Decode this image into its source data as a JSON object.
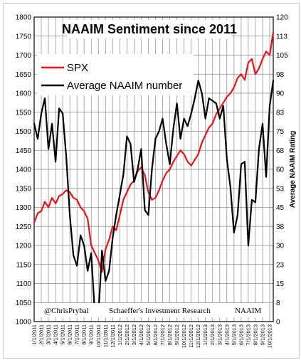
{
  "chart_data": {
    "type": "line",
    "title": "NAAIM Sentiment since 2011",
    "ylabel_right": "Average NAAIM Rating",
    "ylim_left": [
      1000,
      1800
    ],
    "ylim_right": [
      0,
      120
    ],
    "y_left_ticks": [
      "1000",
      "1050",
      "1100",
      "1150",
      "1200",
      "1250",
      "1300",
      "1350",
      "1400",
      "1450",
      "1500",
      "1550",
      "1600",
      "1650",
      "1700",
      "1750",
      "1800"
    ],
    "y_right_ticks": [
      "0",
      "8",
      "15",
      "23",
      "30",
      "38",
      "45",
      "53",
      "60",
      "68",
      "75",
      "83",
      "90",
      "98",
      "105",
      "113",
      "120"
    ],
    "x_tick_labels": [
      "1/1/2011",
      "2/1/2011",
      "3/1/2011",
      "4/1/2011",
      "5/1/2011",
      "6/1/2011",
      "7/1/2011",
      "8/1/2011",
      "9/1/2011",
      "10/1/2011",
      "11/1/2011",
      "12/1/2011",
      "1/1/2012",
      "2/1/2012",
      "3/1/2012",
      "4/1/2012",
      "5/1/2012",
      "6/1/2012",
      "7/1/2012",
      "8/1/2012",
      "9/1/2012",
      "10/1/2012",
      "11/1/2012",
      "12/1/2012",
      "1/1/2013",
      "2/1/2013",
      "3/1/2013",
      "4/1/2013",
      "5/1/2013",
      "6/1/2013",
      "7/1/2013",
      "8/1/2013",
      "9/1/2013",
      "10/1/2013"
    ],
    "grid": true,
    "legend_position": "top-left",
    "credits": [
      "@ChrisPrybal",
      "Schaeffer's Investment Research",
      "NAAIM"
    ],
    "series": [
      {
        "name": "SPX",
        "axis": "left",
        "color": "#e8131b",
        "x": [
          0,
          0.5,
          1,
          1.5,
          2,
          2.5,
          3,
          3.5,
          4,
          4.5,
          5,
          5.5,
          6,
          6.5,
          7,
          7.5,
          8,
          8.5,
          9,
          9.5,
          10,
          10.5,
          11,
          11.5,
          12,
          12.5,
          13,
          13.5,
          14,
          14.5,
          15,
          15.5,
          16,
          16.5,
          17,
          17.5,
          18,
          18.5,
          19,
          19.5,
          20,
          20.5,
          21,
          21.5,
          22,
          22.5,
          23,
          23.5,
          24,
          24.5,
          25,
          25.5,
          26,
          26.5,
          27,
          27.5,
          28,
          28.5,
          29,
          29.5,
          30,
          30.5,
          31,
          31.5,
          32,
          32.5,
          33,
          33.5
        ],
        "values": [
          1260,
          1285,
          1290,
          1315,
          1300,
          1325,
          1310,
          1330,
          1335,
          1345,
          1340,
          1325,
          1320,
          1300,
          1290,
          1270,
          1200,
          1180,
          1160,
          1130,
          1190,
          1215,
          1250,
          1240,
          1280,
          1320,
          1340,
          1360,
          1370,
          1395,
          1405,
          1385,
          1340,
          1320,
          1325,
          1345,
          1370,
          1390,
          1400,
          1420,
          1435,
          1450,
          1440,
          1420,
          1410,
          1425,
          1440,
          1470,
          1490,
          1510,
          1520,
          1545,
          1560,
          1575,
          1590,
          1600,
          1615,
          1640,
          1650,
          1635,
          1680,
          1690,
          1650,
          1665,
          1690,
          1710,
          1700,
          1760
        ]
      },
      {
        "name": "Average NAAIM number",
        "axis": "right",
        "color": "#000000",
        "x": [
          0,
          0.5,
          1,
          1.5,
          2,
          2.5,
          3,
          3.5,
          4,
          4.5,
          5,
          5.5,
          6,
          6.5,
          7,
          7.5,
          8,
          8.5,
          9,
          9.5,
          10,
          10.5,
          11,
          11.5,
          12,
          12.5,
          13,
          13.5,
          14,
          14.5,
          15,
          15.5,
          16,
          16.5,
          17,
          17.5,
          18,
          18.5,
          19,
          19.5,
          20,
          20.5,
          21,
          21.5,
          22,
          22.5,
          23,
          23.5,
          24,
          24.5,
          25,
          25.5,
          26,
          26.5,
          27,
          27.5,
          28,
          28.5,
          29,
          29.5,
          30,
          30.5,
          31,
          31.5,
          32,
          32.5,
          33,
          33.5
        ],
        "values": [
          78,
          72,
          82,
          88,
          68,
          78,
          63,
          84,
          82,
          65,
          42,
          26,
          22,
          34,
          30,
          20,
          27,
          3,
          2,
          28,
          16,
          20,
          33,
          42,
          50,
          58,
          73,
          70,
          55,
          60,
          68,
          44,
          42,
          60,
          72,
          75,
          80,
          70,
          62,
          76,
          86,
          72,
          80,
          77,
          82,
          88,
          95,
          90,
          80,
          88,
          87,
          86,
          80,
          85,
          64,
          53,
          35,
          42,
          62,
          63,
          30,
          48,
          47,
          68,
          78,
          57,
          85,
          95
        ]
      }
    ]
  }
}
